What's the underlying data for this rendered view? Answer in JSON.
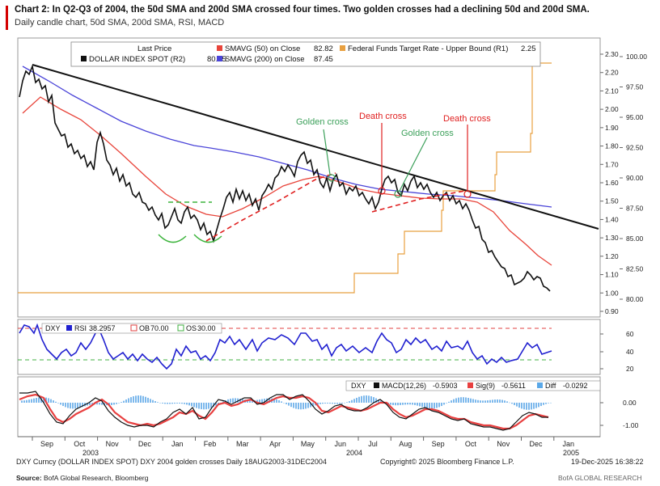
{
  "header": {
    "title": "Chart 2:  In Q2-Q3 of 2004, the 50d SMA and 200d SMA crossed four times. Two golden crosses had a declining 50d and 200d SMA.",
    "subtitle": "Daily candle chart, 50d SMA, 200d SMA, RSI, MACD"
  },
  "footer": {
    "left": "DXY Curncy (DOLLAR INDEX SPOT) DXY 2004 golden crosses Daily 18AUG2003-31DEC2004",
    "center": "Copyright© 2025 Bloomberg Finance L.P.",
    "right": "19-Dec-2025 16:38:22",
    "source_label": "Source:",
    "source_text": " BofA Global Research, Bloomberg",
    "brand": "BofA GLOBAL RESEARCH"
  },
  "chart_data": [
    {
      "type": "line",
      "panel": "price",
      "legend": {
        "last_price_label": "Last Price",
        "items": [
          {
            "label": "DOLLAR INDEX SPOT  (R2)",
            "value": "80.85",
            "color": "#111111"
          },
          {
            "label": "SMAVG (50)  on Close",
            "value": "82.82",
            "color": "#e8443a"
          },
          {
            "label": "SMAVG (200)  on Close",
            "value": "87.45",
            "color": "#4a44d8"
          },
          {
            "label": "Federal Funds Target Rate - Upper Bound  (R1)",
            "value": "2.25",
            "color": "#e8a040"
          }
        ]
      },
      "x_ticks": [
        "Sep",
        "Oct",
        "Nov",
        "Dec",
        "Jan",
        "Feb",
        "Mar",
        "Apr",
        "May",
        "Jun",
        "Jul",
        "Aug",
        "Sep",
        "Oct",
        "Nov",
        "Dec",
        "Jan"
      ],
      "year_labels": [
        "2003",
        "2004",
        "2005"
      ],
      "right_axis_R1": {
        "ticks": [
          "2.30",
          "2.20",
          "2.10",
          "2.00",
          "1.90",
          "1.80",
          "1.70",
          "1.60",
          "1.50",
          "1.40",
          "1.30",
          "1.20",
          "1.10",
          "1.00",
          "0.90"
        ],
        "range": [
          0.9,
          2.3
        ]
      },
      "right_axis_R2": {
        "ticks": [
          "100.00",
          "97.50",
          "95.00",
          "92.50",
          "90.00",
          "87.50",
          "85.00",
          "82.50",
          "80.00"
        ],
        "range": [
          79.5,
          100.5
        ]
      },
      "dollar_index_approx": {
        "x": [
          "Aug",
          "Sep",
          "Oct",
          "Nov",
          "Dec",
          "Jan",
          "Feb",
          "Mar",
          "Apr",
          "May",
          "Jun",
          "Jul",
          "Aug",
          "Sep",
          "Oct",
          "Nov",
          "Dec"
        ],
        "y": [
          98.0,
          97.0,
          94.5,
          92.5,
          89.0,
          86.0,
          85.5,
          88.0,
          88.5,
          91.0,
          89.5,
          88.5,
          89.0,
          89.5,
          88.0,
          83.0,
          80.85
        ]
      },
      "fed_funds_steps": [
        {
          "from": "Aug 2003",
          "to": "Jun 2004",
          "value": 1.0
        },
        {
          "from": "Jul 2004",
          "to": "Aug 2004",
          "value": 1.25
        },
        {
          "from": "Aug 2004",
          "to": "Sep 2004",
          "value": 1.5
        },
        {
          "from": "Sep 2004",
          "to": "Nov 2004",
          "value": 1.75
        },
        {
          "from": "Nov 2004",
          "to": "Dec 2004",
          "value": 2.0
        },
        {
          "from": "Dec 2004",
          "to": "Dec 2004",
          "value": 2.25
        }
      ],
      "annotations": [
        "Golden cross",
        "Death cross",
        "Golden cross",
        "Death cross"
      ]
    },
    {
      "type": "line",
      "panel": "rsi",
      "legend": {
        "ticker": "DXY",
        "rsi_label": "RSI",
        "rsi_value": "38.2957",
        "ob_label": "OB",
        "ob_value": "70.00",
        "os_label": "OS",
        "os_value": "30.00"
      },
      "y_ticks": [
        "60",
        "40",
        "20"
      ],
      "ylim": [
        15,
        75
      ]
    },
    {
      "type": "bar",
      "panel": "macd",
      "legend": {
        "ticker": "DXY",
        "macd_label": "MACD(12,26)",
        "macd_value": "-0.5903",
        "sig_label": "Sig(9)",
        "sig_value": "-0.5611",
        "diff_label": "Diff",
        "diff_value": "-0.0292"
      },
      "y_ticks": [
        "0.00",
        "-1.00"
      ],
      "ylim": [
        -1.4,
        0.8
      ]
    }
  ]
}
